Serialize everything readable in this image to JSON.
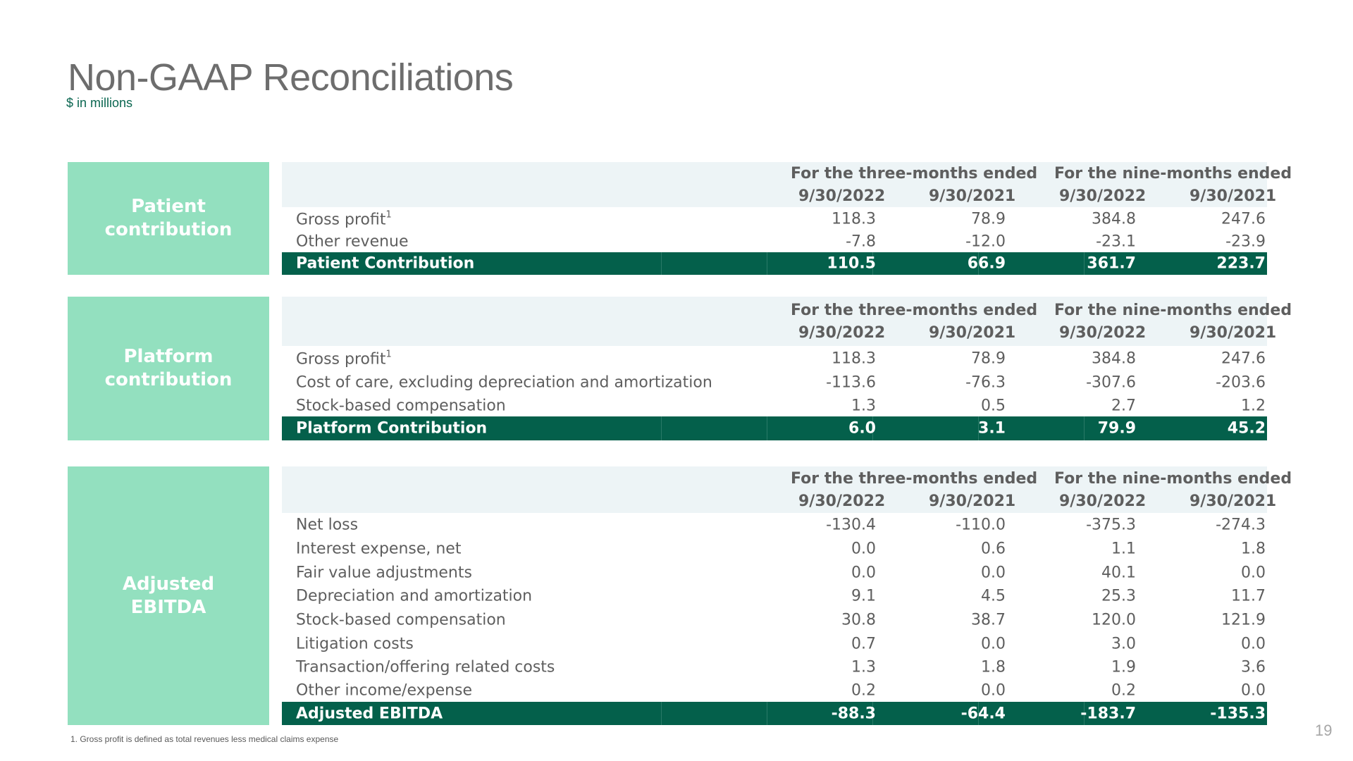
{
  "title": "Non-GAAP Reconciliations",
  "subtitle": "$ in millions",
  "column_groups": [
    "For the three-months ended",
    "For the nine-months ended"
  ],
  "dates": [
    "9/30/2022",
    "9/30/2021",
    "9/30/2022",
    "9/30/2021"
  ],
  "sections": [
    {
      "side_label": "Patient\ncontribution",
      "rows": [
        {
          "label": "Gross profit",
          "sup": "1",
          "values": [
            "118.3",
            "78.9",
            "384.8",
            "247.6"
          ]
        },
        {
          "label": "Other revenue",
          "values": [
            "-7.8",
            "-12.0",
            "-23.1",
            "-23.9"
          ]
        }
      ],
      "total": {
        "label": "Patient Contribution",
        "values": [
          "110.5",
          "66.9",
          "361.7",
          "223.7"
        ]
      }
    },
    {
      "side_label": "Platform\ncontribution",
      "rows": [
        {
          "label": "Gross profit",
          "sup": "1",
          "values": [
            "118.3",
            "78.9",
            "384.8",
            "247.6"
          ]
        },
        {
          "label": "Cost of care, excluding depreciation and amortization",
          "values": [
            "-113.6",
            "-76.3",
            "-307.6",
            "-203.6"
          ]
        },
        {
          "label": "Stock-based compensation",
          "values": [
            "1.3",
            "0.5",
            "2.7",
            "1.2"
          ]
        }
      ],
      "total": {
        "label": "Platform Contribution",
        "values": [
          "6.0",
          "3.1",
          "79.9",
          "45.2"
        ]
      }
    },
    {
      "side_label": "Adjusted\nEBITDA",
      "rows": [
        {
          "label": "Net loss",
          "values": [
            "-130.4",
            "-110.0",
            "-375.3",
            "-274.3"
          ]
        },
        {
          "label": "Interest expense, net",
          "values": [
            "0.0",
            "0.6",
            "1.1",
            "1.8"
          ]
        },
        {
          "label": "Fair value adjustments",
          "values": [
            "0.0",
            "0.0",
            "40.1",
            "0.0"
          ]
        },
        {
          "label": "Depreciation and amortization",
          "values": [
            "9.1",
            "4.5",
            "25.3",
            "11.7"
          ]
        },
        {
          "label": "Stock-based compensation",
          "values": [
            "30.8",
            "38.7",
            "120.0",
            "121.9"
          ]
        },
        {
          "label": "Litigation costs",
          "values": [
            "0.7",
            "0.0",
            "3.0",
            "0.0"
          ]
        },
        {
          "label": "Transaction/offering related costs",
          "values": [
            "1.3",
            "1.8",
            "1.9",
            "3.6"
          ]
        },
        {
          "label": "Other income/expense",
          "values": [
            "0.2",
            "0.0",
            "0.2",
            "0.0"
          ]
        }
      ],
      "total": {
        "label": "Adjusted EBITDA",
        "values": [
          "-88.3",
          "-64.4",
          "-183.7",
          "-135.3"
        ]
      }
    }
  ],
  "footnote": "1.   Gross profit is defined as total revenues less medical claims expense",
  "page_number": "19",
  "colors": {
    "side_box": "#93e0bf",
    "total_row": "#04604b",
    "header_band": "#edf4f6",
    "subtitle": "#0a6650"
  }
}
